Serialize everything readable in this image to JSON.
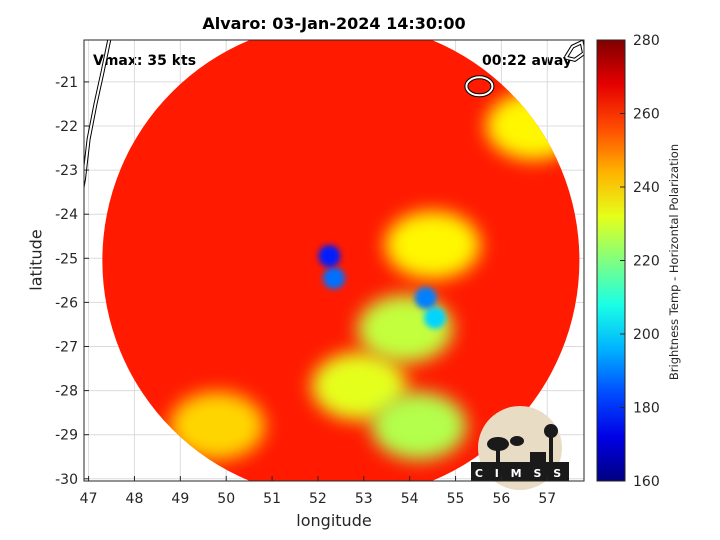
{
  "chart_data": {
    "type": "heatmap",
    "title": "Alvaro: 03-Jan-2024 14:30:00",
    "xlabel": "longitude",
    "ylabel": "latitude",
    "xlim": [
      46.9,
      57.8
    ],
    "ylim": [
      -30.05,
      -20.05
    ],
    "xticks": [
      47,
      48,
      49,
      50,
      51,
      52,
      53,
      54,
      55,
      56,
      57
    ],
    "yticks": [
      -21,
      -22,
      -23,
      -24,
      -25,
      -26,
      -27,
      -28,
      -29,
      -30
    ],
    "grid": true,
    "colorbar": {
      "label": "Brightness Temp - Horizontal Polarization",
      "range": [
        160,
        280
      ],
      "ticks": [
        160,
        180,
        200,
        220,
        240,
        260,
        280
      ],
      "colormap": "jet"
    },
    "annotations": {
      "vmax": "Vmax: 35 kts",
      "time_away": "00:22 away"
    },
    "logo_text": "CIMSS",
    "swath": {
      "center": [
        52.5,
        -25.05
      ],
      "radius_deg": 5.2,
      "background_tb": 262
    },
    "features": [
      {
        "name": "core-cell-north",
        "lon": 52.25,
        "lat": -24.95,
        "tb": 178
      },
      {
        "name": "core-cell-south",
        "lon": 52.35,
        "lat": -25.45,
        "tb": 188
      },
      {
        "name": "east-cell",
        "lon": 54.35,
        "lat": -25.9,
        "tb": 190
      },
      {
        "name": "east-cell-south",
        "lon": 54.55,
        "lat": -26.35,
        "tb": 200
      },
      {
        "name": "rainband-east",
        "lon": 53.9,
        "lat": -26.6,
        "tb": 228
      },
      {
        "name": "rainband-south",
        "lon": 52.9,
        "lat": -27.9,
        "tb": 232
      },
      {
        "name": "south-rain",
        "lon": 54.2,
        "lat": -28.8,
        "tb": 226
      },
      {
        "name": "isolated-cell-east",
        "lon": 54.5,
        "lat": -24.7,
        "tb": 236
      },
      {
        "name": "southwest-rain",
        "lon": 49.8,
        "lat": -28.8,
        "tb": 240
      },
      {
        "name": "northeast-edge",
        "lon": 56.7,
        "lat": -22.0,
        "tb": 236
      }
    ]
  },
  "colors": {
    "background": "#ffffff",
    "coastline": "#ffffff",
    "coastline_outline": "#000000",
    "grid": "#dcdcdc"
  }
}
